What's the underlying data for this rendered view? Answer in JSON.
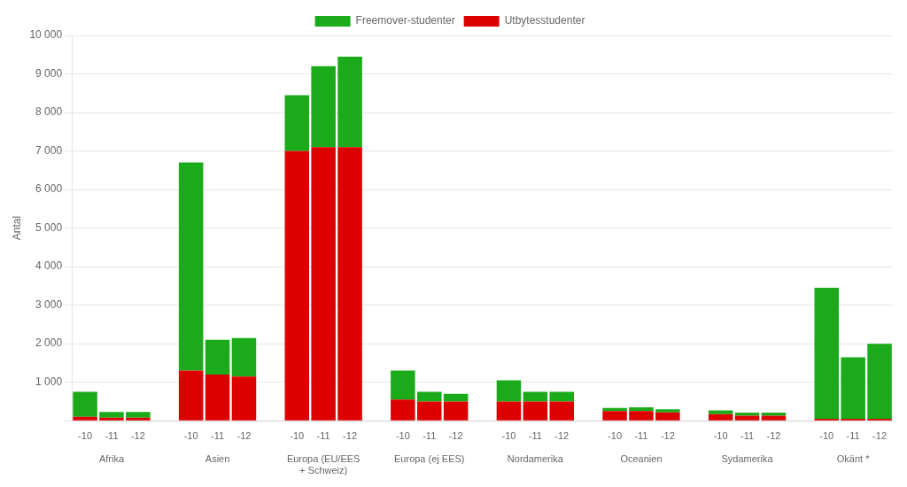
{
  "chart_data": {
    "type": "bar",
    "stacked": true,
    "ylabel": "Antal",
    "groups": [
      "Afrika",
      "Asien",
      "Europa (EU/EES\n+ Schweiz)",
      "Europa (ej EES)",
      "Nordamerika",
      "Oceanien",
      "Sydamerika",
      "Okänt *"
    ],
    "categories": [
      "-10",
      "-11",
      "-12"
    ],
    "series": [
      {
        "name": "Utbytesstudenter",
        "color": "#dd0000",
        "values": [
          [
            100,
            80,
            80
          ],
          [
            1300,
            1200,
            1150
          ],
          [
            7000,
            7100,
            7100
          ],
          [
            550,
            500,
            500
          ],
          [
            500,
            500,
            500
          ],
          [
            250,
            250,
            220
          ],
          [
            170,
            130,
            130
          ],
          [
            50,
            50,
            50
          ]
        ]
      },
      {
        "name": "Freemover-studenter",
        "color": "#1aaa1a",
        "values": [
          [
            650,
            150,
            150
          ],
          [
            5400,
            900,
            1000
          ],
          [
            1450,
            2100,
            2350
          ],
          [
            750,
            250,
            200
          ],
          [
            550,
            250,
            250
          ],
          [
            80,
            100,
            80
          ],
          [
            100,
            80,
            80
          ],
          [
            3400,
            1600,
            1950
          ]
        ]
      }
    ],
    "ylim": [
      0,
      10000
    ],
    "yticks": [
      {
        "value": 0,
        "label": ""
      },
      {
        "value": 1000,
        "label": "1 000"
      },
      {
        "value": 2000,
        "label": "2 000"
      },
      {
        "value": 3000,
        "label": "3 000"
      },
      {
        "value": 4000,
        "label": "4 000"
      },
      {
        "value": 5000,
        "label": "5 000"
      },
      {
        "value": 6000,
        "label": "6 000"
      },
      {
        "value": 7000,
        "label": "7 000"
      },
      {
        "value": 8000,
        "label": "8 000"
      },
      {
        "value": 9000,
        "label": "9 000"
      },
      {
        "value": 10000,
        "label": "10 000"
      }
    ],
    "grid": true,
    "legend": "top"
  }
}
